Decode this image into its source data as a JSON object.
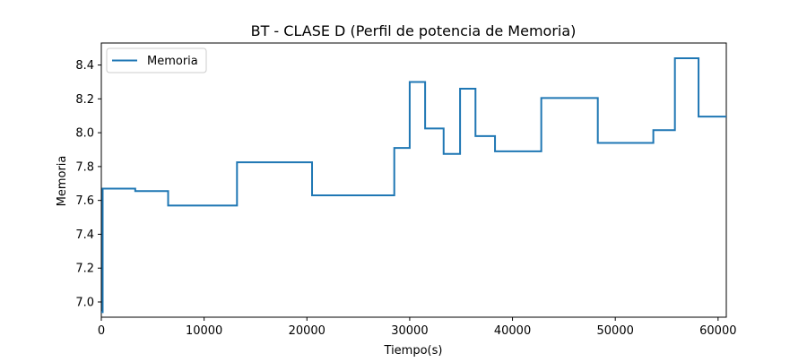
{
  "chart_data": {
    "type": "line",
    "title": "BT - CLASE D (Perfil de potencia de Memoria)",
    "xlabel": "Tiempo(s)",
    "ylabel": "Memoria",
    "xlim": [
      0,
      60800
    ],
    "ylim": [
      6.91,
      8.53
    ],
    "xticks": [
      0,
      10000,
      20000,
      30000,
      40000,
      50000,
      60000
    ],
    "yticks": [
      7.0,
      7.2,
      7.4,
      7.6,
      7.8,
      8.0,
      8.2,
      8.4
    ],
    "xtick_labels": [
      "0",
      "10000",
      "20000",
      "30000",
      "40000",
      "50000",
      "60000"
    ],
    "ytick_labels": [
      "7.0",
      "7.2",
      "7.4",
      "7.6",
      "7.8",
      "8.0",
      "8.2",
      "8.4"
    ],
    "grid": false,
    "legend_position": "top-left",
    "series": [
      {
        "name": "Memoria",
        "color": "#1f77b4",
        "step": "post",
        "x": [
          0,
          130,
          3300,
          6500,
          13200,
          20500,
          28500,
          30000,
          31500,
          33300,
          34900,
          36400,
          38300,
          42800,
          48300,
          53700,
          55800,
          58100,
          60800
        ],
        "y": [
          6.94,
          7.67,
          7.655,
          7.57,
          7.825,
          7.63,
          7.91,
          8.3,
          8.025,
          7.875,
          8.26,
          7.98,
          7.89,
          8.205,
          7.94,
          8.015,
          8.44,
          8.095,
          8.095
        ]
      }
    ]
  }
}
